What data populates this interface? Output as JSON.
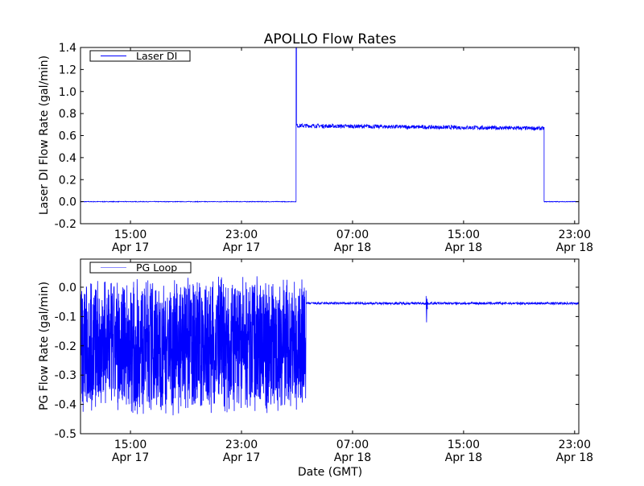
{
  "chart_data": [
    {
      "type": "line",
      "title": "APOLLO Flow Rates",
      "xlabel": "",
      "ylabel": "Laser DI Flow Rate (gal/min)",
      "x_units": "hours since Apr 17 00:00 GMT",
      "xlim": [
        11.4,
        47.3
      ],
      "ylim": [
        -0.2,
        1.4
      ],
      "yticks": [
        -0.2,
        0.0,
        0.2,
        0.4,
        0.6,
        0.8,
        1.0,
        1.2,
        1.4
      ],
      "ytick_labels": [
        "-0.2",
        "0.0",
        "0.2",
        "0.4",
        "0.6",
        "0.8",
        "1.0",
        "1.2",
        "1.4"
      ],
      "xticks": [
        15,
        23,
        31,
        39,
        47
      ],
      "xtick_labels": [
        [
          "15:00",
          "Apr 17"
        ],
        [
          "23:00",
          "Apr 17"
        ],
        [
          "07:00",
          "Apr 18"
        ],
        [
          "15:00",
          "Apr 18"
        ],
        [
          "23:00",
          "Apr 18"
        ]
      ],
      "legend": {
        "placement": "top-left",
        "entries": [
          "Laser DI"
        ]
      },
      "series": [
        {
          "name": "Laser DI",
          "color": "#0000ff",
          "segments": [
            {
              "x0": 11.4,
              "x1": 26.93,
              "mean_start": 0.0,
              "mean_end": 0.0,
              "noise": 0.003
            },
            {
              "x0": 26.93,
              "x1": 26.96,
              "mean_start": 1.45,
              "mean_end": 1.45,
              "noise": 0.0
            },
            {
              "x0": 26.96,
              "x1": 44.8,
              "mean_start": 0.69,
              "mean_end": 0.665,
              "noise": 0.018
            },
            {
              "x0": 44.8,
              "x1": 47.3,
              "mean_start": 0.0,
              "mean_end": 0.0,
              "noise": 0.003
            }
          ]
        }
      ]
    },
    {
      "type": "line",
      "title": "",
      "xlabel": "Date (GMT)",
      "ylabel": "PG Flow Rate (gal/min)",
      "x_units": "hours since Apr 17 00:00 GMT",
      "xlim": [
        11.4,
        47.3
      ],
      "ylim": [
        -0.5,
        0.096
      ],
      "yticks": [
        -0.5,
        -0.4,
        -0.3,
        -0.2,
        -0.1,
        0.0
      ],
      "ytick_labels": [
        "-0.5",
        "-0.4",
        "-0.3",
        "-0.2",
        "-0.1",
        "0.0"
      ],
      "xticks": [
        15,
        23,
        31,
        39,
        47
      ],
      "xtick_labels": [
        [
          "15:00",
          "Apr 17"
        ],
        [
          "23:00",
          "Apr 17"
        ],
        [
          "07:00",
          "Apr 18"
        ],
        [
          "15:00",
          "Apr 18"
        ],
        [
          "23:00",
          "Apr 18"
        ]
      ],
      "legend": {
        "placement": "top-left",
        "entries": [
          "PG Loop"
        ]
      },
      "series": [
        {
          "name": "PG Loop",
          "color": "#0000ff",
          "segments": [
            {
              "x0": 11.4,
              "x1": 27.65,
              "mean_start": -0.2,
              "mean_end": -0.2,
              "noise": 0.24
            },
            {
              "x0": 27.65,
              "x1": 47.3,
              "mean_start": -0.055,
              "mean_end": -0.055,
              "noise": 0.004
            }
          ],
          "events": [
            {
              "x": 36.3,
              "min": -0.12,
              "max": -0.03
            }
          ]
        }
      ]
    }
  ]
}
